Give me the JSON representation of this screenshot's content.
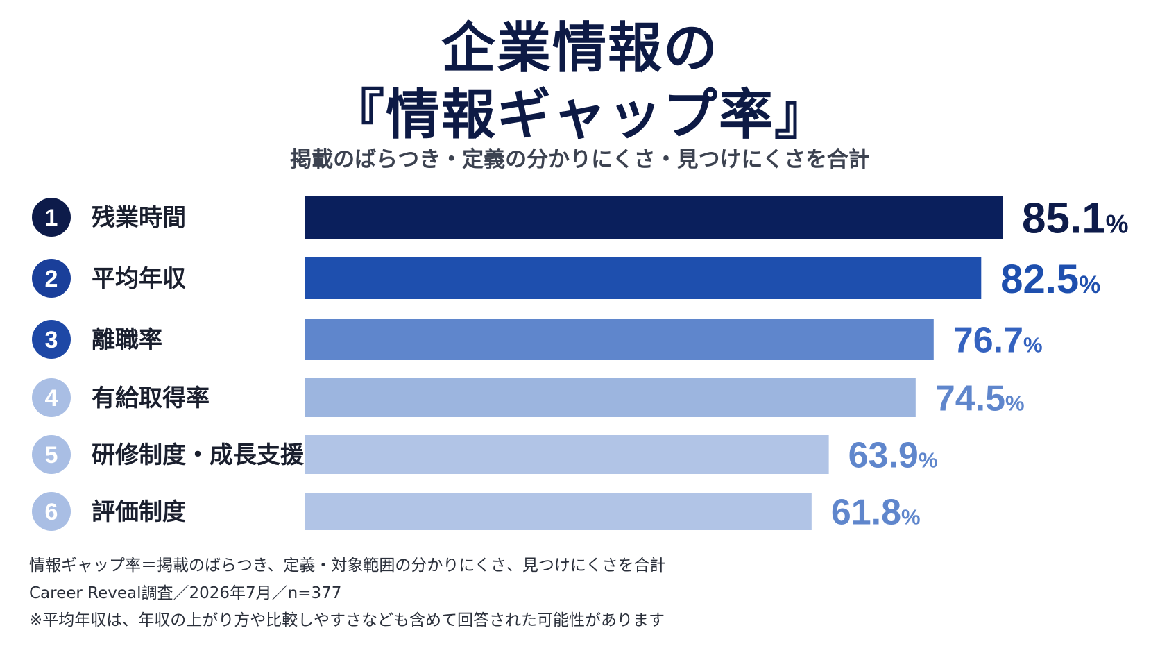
{
  "chart_data": {
    "type": "bar",
    "orientation": "horizontal",
    "title": [
      "企業情報の",
      "『情報ギャップ率』"
    ],
    "subtitle": "掲載のばらつき・定義の分かりにくさ・見つけにくさを合計",
    "xlim": [
      0,
      85.1
    ],
    "grid": false,
    "legend": "none",
    "categories": [
      "残業時間",
      "平均年収",
      "離職率",
      "有給取得率",
      "研修制度・成長支援",
      "評価制度"
    ],
    "ranks": [
      "1",
      "2",
      "3",
      "4",
      "5",
      "6"
    ],
    "values": [
      85.1,
      82.5,
      76.7,
      74.5,
      63.9,
      61.8
    ],
    "value_labels": [
      "85.1",
      "82.5",
      "76.7",
      "74.5",
      "63.9",
      "61.8"
    ],
    "unit": "%",
    "bar_colors": [
      "#0a1f5c",
      "#1e4fae",
      "#5f86cc",
      "#9cb5df",
      "#b1c4e6",
      "#b1c4e6"
    ],
    "badge_colors": [
      "#0d1b4a",
      "#1a3f9a",
      "#1e48a6",
      "#a9bee4",
      "#a9bee4",
      "#a9bee4"
    ],
    "label_colors": [
      "#0d1b4a",
      "#1e4fae",
      "#3462bf",
      "#5f86cc",
      "#5f86cc",
      "#5f86cc"
    ]
  },
  "notes": [
    "情報ギャップ率＝掲載のばらつき、定義・対象範囲の分かりにくさ、見つけにくさを合計",
    "Career Reveal調査／2026年7月／n=377",
    "※平均年収は、年収の上がり方や比較しやすさなども含めて回答された可能性があります"
  ]
}
